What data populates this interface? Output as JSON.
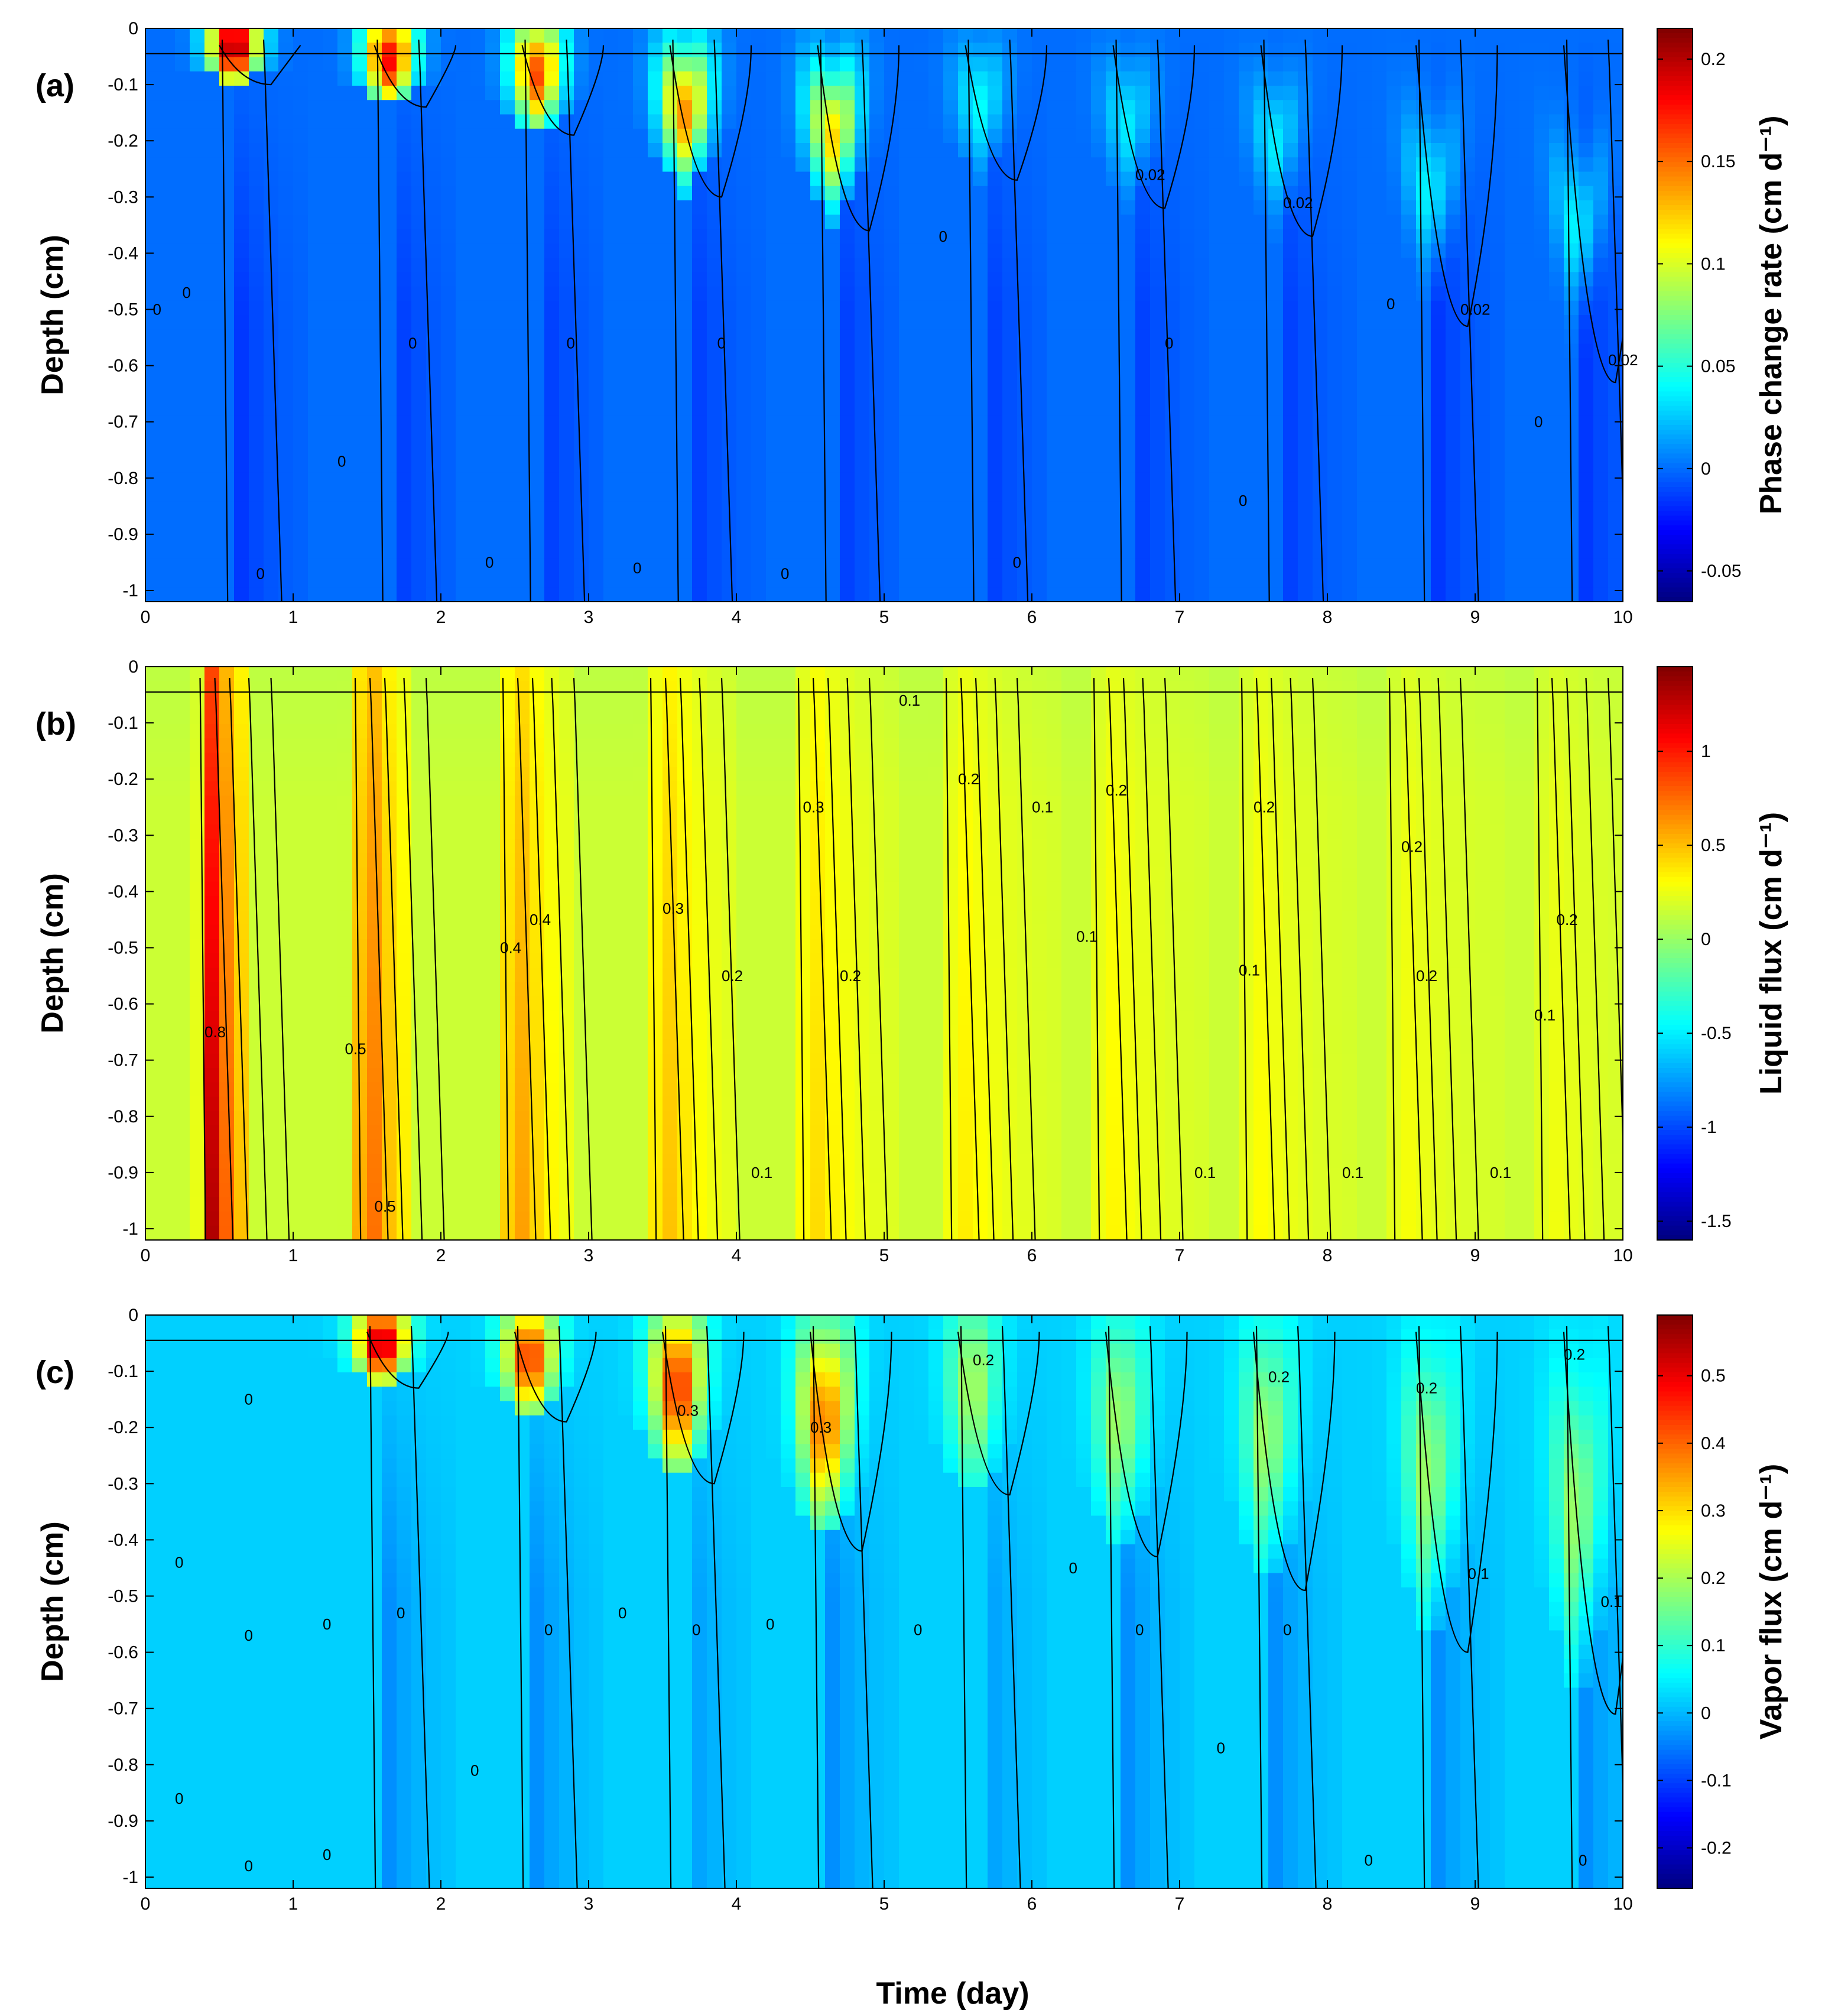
{
  "figure": {
    "xlabel": "Time (day)",
    "colors": {
      "jet": [
        "#00007f",
        "#0000ff",
        "#007fff",
        "#00ffff",
        "#7fff7f",
        "#ffff00",
        "#ff7f00",
        "#ff0000",
        "#7f0000"
      ],
      "contour_line": "#000000"
    }
  },
  "chart_data": [
    {
      "type": "heatmap",
      "panel_label": "(a)",
      "xlabel": "",
      "ylabel": "Depth (cm)",
      "colorbar_label": "Phase change rate (cm d⁻¹)",
      "xlim": [
        0,
        10
      ],
      "ylim": [
        -1.02,
        0
      ],
      "clim": [
        -0.065,
        0.215
      ],
      "xticks": [
        "0",
        "1",
        "2",
        "3",
        "4",
        "5",
        "6",
        "7",
        "8",
        "9",
        "10"
      ],
      "yticks": [
        "0",
        "-0.1",
        "-0.2",
        "-0.3",
        "-0.4",
        "-0.5",
        "-0.6",
        "-0.7",
        "-0.8",
        "-0.9",
        "-1"
      ],
      "cbar_ticks": [
        "0.2",
        "0.15",
        "0.1",
        "0.05",
        "0",
        "-0.05"
      ],
      "background_value": 0.0,
      "features": [
        {
          "t": 0.6,
          "depth": 0.05,
          "peak": 0.21,
          "spread": 0.05
        },
        {
          "t": 1.65,
          "depth": 0.08,
          "peak": 0.18,
          "spread": 0.06
        },
        {
          "t": 2.65,
          "depth": 0.12,
          "peak": 0.16,
          "spread": 0.07
        },
        {
          "t": 3.65,
          "depth": 0.22,
          "peak": 0.14,
          "spread": 0.08
        },
        {
          "t": 4.65,
          "depth": 0.28,
          "peak": 0.12,
          "spread": 0.08
        },
        {
          "t": 5.65,
          "depth": 0.2,
          "peak": 0.04,
          "spread": 0.07
        },
        {
          "t": 6.65,
          "depth": 0.25,
          "peak": 0.035,
          "spread": 0.07
        },
        {
          "t": 7.65,
          "depth": 0.3,
          "peak": 0.035,
          "spread": 0.07
        },
        {
          "t": 8.7,
          "depth": 0.45,
          "peak": 0.04,
          "spread": 0.08
        },
        {
          "t": 9.7,
          "depth": 0.55,
          "peak": 0.04,
          "spread": 0.08
        }
      ],
      "contour_labels": [
        {
          "t": 0.05,
          "depth": 0.5,
          "text": "0"
        },
        {
          "t": 0.25,
          "depth": 0.47,
          "text": "0"
        },
        {
          "t": 0.75,
          "depth": 0.97,
          "text": "0"
        },
        {
          "t": 1.3,
          "depth": 0.77,
          "text": "0"
        },
        {
          "t": 1.78,
          "depth": 0.56,
          "text": "0"
        },
        {
          "t": 2.3,
          "depth": 0.95,
          "text": "0"
        },
        {
          "t": 2.85,
          "depth": 0.56,
          "text": "0"
        },
        {
          "t": 3.3,
          "depth": 0.96,
          "text": "0"
        },
        {
          "t": 3.87,
          "depth": 0.56,
          "text": "0"
        },
        {
          "t": 4.3,
          "depth": 0.97,
          "text": "0"
        },
        {
          "t": 5.37,
          "depth": 0.37,
          "text": "0"
        },
        {
          "t": 5.87,
          "depth": 0.95,
          "text": "0"
        },
        {
          "t": 6.9,
          "depth": 0.56,
          "text": "0"
        },
        {
          "t": 7.4,
          "depth": 0.84,
          "text": "0"
        },
        {
          "t": 8.4,
          "depth": 0.49,
          "text": "0"
        },
        {
          "t": 9.4,
          "depth": 0.7,
          "text": "0"
        },
        {
          "t": 6.7,
          "depth": 0.26,
          "text": "0.02"
        },
        {
          "t": 7.7,
          "depth": 0.31,
          "text": "0.02"
        },
        {
          "t": 8.9,
          "depth": 0.5,
          "text": "0.02"
        },
        {
          "t": 9.9,
          "depth": 0.59,
          "text": "0.02"
        }
      ]
    },
    {
      "type": "heatmap",
      "panel_label": "(b)",
      "xlabel": "",
      "ylabel": "Depth (cm)",
      "colorbar_label": "Liquid flux (cm d⁻¹)",
      "xlim": [
        0,
        10
      ],
      "ylim": [
        -1.02,
        0
      ],
      "clim": [
        -1.6,
        1.45
      ],
      "xticks": [
        "0",
        "1",
        "2",
        "3",
        "4",
        "5",
        "6",
        "7",
        "8",
        "9",
        "10"
      ],
      "yticks": [
        "0",
        "-0.1",
        "-0.2",
        "-0.3",
        "-0.4",
        "-0.5",
        "-0.6",
        "-0.7",
        "-0.8",
        "-0.9",
        "-1"
      ],
      "cbar_ticks": [
        "1",
        "0.5",
        "0",
        "-0.5",
        "-1",
        "-1.5"
      ],
      "background_value": 0.15,
      "features": [
        {
          "t": 0.45,
          "peak": 1.3,
          "width": 0.3
        },
        {
          "t": 1.5,
          "peak": 0.9,
          "width": 0.35
        },
        {
          "t": 2.5,
          "peak": 0.7,
          "width": 0.4
        },
        {
          "t": 3.5,
          "peak": 0.55,
          "width": 0.5
        },
        {
          "t": 4.5,
          "peak": 0.45,
          "width": 0.6
        },
        {
          "t": 5.5,
          "peak": 0.38,
          "width": 0.7
        },
        {
          "t": 6.5,
          "peak": 0.35,
          "width": 0.7
        },
        {
          "t": 7.5,
          "peak": 0.33,
          "width": 0.7
        },
        {
          "t": 8.5,
          "peak": 0.3,
          "width": 0.7
        },
        {
          "t": 9.5,
          "peak": 0.28,
          "width": 0.7
        }
      ],
      "contour_labels": [
        {
          "t": 0.4,
          "depth": 0.65,
          "text": "0.8"
        },
        {
          "t": 1.35,
          "depth": 0.68,
          "text": "0.5"
        },
        {
          "t": 1.55,
          "depth": 0.96,
          "text": "0.5"
        },
        {
          "t": 2.4,
          "depth": 0.5,
          "text": "0.4"
        },
        {
          "t": 2.6,
          "depth": 0.45,
          "text": "0.4"
        },
        {
          "t": 3.5,
          "depth": 0.43,
          "text": "0.3"
        },
        {
          "t": 3.9,
          "depth": 0.55,
          "text": "0.2"
        },
        {
          "t": 4.7,
          "depth": 0.55,
          "text": "0.2"
        },
        {
          "t": 4.45,
          "depth": 0.25,
          "text": "0.3"
        },
        {
          "t": 5.1,
          "depth": 0.06,
          "text": "0.1"
        },
        {
          "t": 5.5,
          "depth": 0.2,
          "text": "0.2"
        },
        {
          "t": 6.0,
          "depth": 0.25,
          "text": "0.1"
        },
        {
          "t": 6.5,
          "depth": 0.22,
          "text": "0.2"
        },
        {
          "t": 6.3,
          "depth": 0.48,
          "text": "0.1"
        },
        {
          "t": 7.5,
          "depth": 0.25,
          "text": "0.2"
        },
        {
          "t": 7.4,
          "depth": 0.54,
          "text": "0.1"
        },
        {
          "t": 8.5,
          "depth": 0.32,
          "text": "0.2"
        },
        {
          "t": 8.6,
          "depth": 0.55,
          "text": "0.2"
        },
        {
          "t": 9.4,
          "depth": 0.62,
          "text": "0.1"
        },
        {
          "t": 9.55,
          "depth": 0.45,
          "text": "0.2"
        },
        {
          "t": 4.1,
          "depth": 0.9,
          "text": "0.1"
        },
        {
          "t": 7.1,
          "depth": 0.9,
          "text": "0.1"
        },
        {
          "t": 8.1,
          "depth": 0.9,
          "text": "0.1"
        },
        {
          "t": 9.1,
          "depth": 0.9,
          "text": "0.1"
        }
      ]
    },
    {
      "type": "heatmap",
      "panel_label": "(c)",
      "xlabel": "Time (day)",
      "ylabel": "Depth (cm)",
      "colorbar_label": "Vapor flux (cm d⁻¹)",
      "xlim": [
        0,
        10
      ],
      "ylim": [
        -1.02,
        0
      ],
      "clim": [
        -0.26,
        0.59
      ],
      "xticks": [
        "0",
        "1",
        "2",
        "3",
        "4",
        "5",
        "6",
        "7",
        "8",
        "9",
        "10"
      ],
      "yticks": [
        "0",
        "-0.1",
        "-0.2",
        "-0.3",
        "-0.4",
        "-0.5",
        "-0.6",
        "-0.7",
        "-0.8",
        "-0.9",
        "-1"
      ],
      "cbar_ticks": [
        "0.5",
        "0.4",
        "0.3",
        "0.2",
        "0.1",
        "0",
        "-0.1",
        "-0.2"
      ],
      "background_value": 0.02,
      "features": [
        {
          "t": 1.6,
          "depth": 0.08,
          "peak": 0.55,
          "spread": 0.05
        },
        {
          "t": 2.6,
          "depth": 0.12,
          "peak": 0.45,
          "spread": 0.07
        },
        {
          "t": 3.6,
          "depth": 0.2,
          "peak": 0.45,
          "spread": 0.1
        },
        {
          "t": 4.6,
          "depth": 0.3,
          "peak": 0.4,
          "spread": 0.12
        },
        {
          "t": 5.6,
          "depth": 0.2,
          "peak": 0.2,
          "spread": 0.12
        },
        {
          "t": 6.6,
          "depth": 0.3,
          "peak": 0.2,
          "spread": 0.13
        },
        {
          "t": 7.6,
          "depth": 0.35,
          "peak": 0.2,
          "spread": 0.14
        },
        {
          "t": 8.7,
          "depth": 0.45,
          "peak": 0.2,
          "spread": 0.15
        },
        {
          "t": 9.7,
          "depth": 0.55,
          "peak": 0.2,
          "spread": 0.16
        }
      ],
      "contour_labels": [
        {
          "t": 0.2,
          "depth": 0.44,
          "text": "0"
        },
        {
          "t": 0.2,
          "depth": 0.86,
          "text": "0"
        },
        {
          "t": 0.67,
          "depth": 0.15,
          "text": "0"
        },
        {
          "t": 0.67,
          "depth": 0.57,
          "text": "0"
        },
        {
          "t": 0.67,
          "depth": 0.98,
          "text": "0"
        },
        {
          "t": 1.2,
          "depth": 0.55,
          "text": "0"
        },
        {
          "t": 1.2,
          "depth": 0.96,
          "text": "0"
        },
        {
          "t": 1.7,
          "depth": 0.53,
          "text": "0"
        },
        {
          "t": 2.2,
          "depth": 0.81,
          "text": "0"
        },
        {
          "t": 2.7,
          "depth": 0.56,
          "text": "0"
        },
        {
          "t": 3.2,
          "depth": 0.53,
          "text": "0"
        },
        {
          "t": 3.7,
          "depth": 0.56,
          "text": "0"
        },
        {
          "t": 4.2,
          "depth": 0.55,
          "text": "0"
        },
        {
          "t": 5.2,
          "depth": 0.56,
          "text": "0"
        },
        {
          "t": 6.25,
          "depth": 0.45,
          "text": "0"
        },
        {
          "t": 6.7,
          "depth": 0.56,
          "text": "0"
        },
        {
          "t": 7.25,
          "depth": 0.77,
          "text": "0"
        },
        {
          "t": 7.7,
          "depth": 0.56,
          "text": "0"
        },
        {
          "t": 8.25,
          "depth": 0.97,
          "text": "0"
        },
        {
          "t": 9.7,
          "depth": 0.97,
          "text": "0"
        },
        {
          "t": 3.6,
          "depth": 0.17,
          "text": "0.3"
        },
        {
          "t": 4.5,
          "depth": 0.2,
          "text": "0.3"
        },
        {
          "t": 5.6,
          "depth": 0.08,
          "text": "0.2"
        },
        {
          "t": 7.6,
          "depth": 0.11,
          "text": "0.2"
        },
        {
          "t": 8.6,
          "depth": 0.13,
          "text": "0.2"
        },
        {
          "t": 9.6,
          "depth": 0.07,
          "text": "0.2"
        },
        {
          "t": 8.95,
          "depth": 0.46,
          "text": "0.1"
        },
        {
          "t": 9.85,
          "depth": 0.51,
          "text": "0.1"
        }
      ]
    }
  ]
}
